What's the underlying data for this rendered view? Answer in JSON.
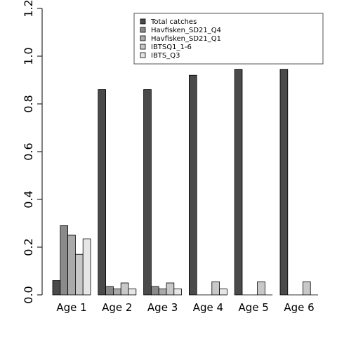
{
  "chart_data": {
    "type": "bar",
    "categories": [
      "Age 1",
      "Age 2",
      "Age 3",
      "Age 4",
      "Age 5",
      "Age 6"
    ],
    "ylim": [
      0,
      1.2
    ],
    "yticks": [
      "0.0",
      "0.2",
      "0.4",
      "0.6",
      "0.8",
      "1.0",
      "1.2"
    ],
    "legend_position": "top-right",
    "series": [
      {
        "name": "Total catches",
        "color": "#4a4a4a",
        "values": [
          0.06,
          0.86,
          0.86,
          0.92,
          0.945,
          0.945
        ]
      },
      {
        "name": "Havfisken_SD21_Q4",
        "color": "#8a8a8a",
        "values": [
          0.29,
          0.035,
          0.035,
          0.0,
          0.0,
          0.0
        ]
      },
      {
        "name": "Havfisken_SD21_Q1",
        "color": "#aaaaaa",
        "values": [
          0.25,
          0.025,
          0.025,
          0.0,
          0.0,
          0.0
        ]
      },
      {
        "name": "IBTSQ1_1-6",
        "color": "#c8c8c8",
        "values": [
          0.17,
          0.05,
          0.05,
          0.055,
          0.055,
          0.055
        ]
      },
      {
        "name": "IBTS_Q3",
        "color": "#e6e6e6",
        "values": [
          0.235,
          0.025,
          0.025,
          0.025,
          0.0,
          0.0
        ]
      }
    ]
  }
}
